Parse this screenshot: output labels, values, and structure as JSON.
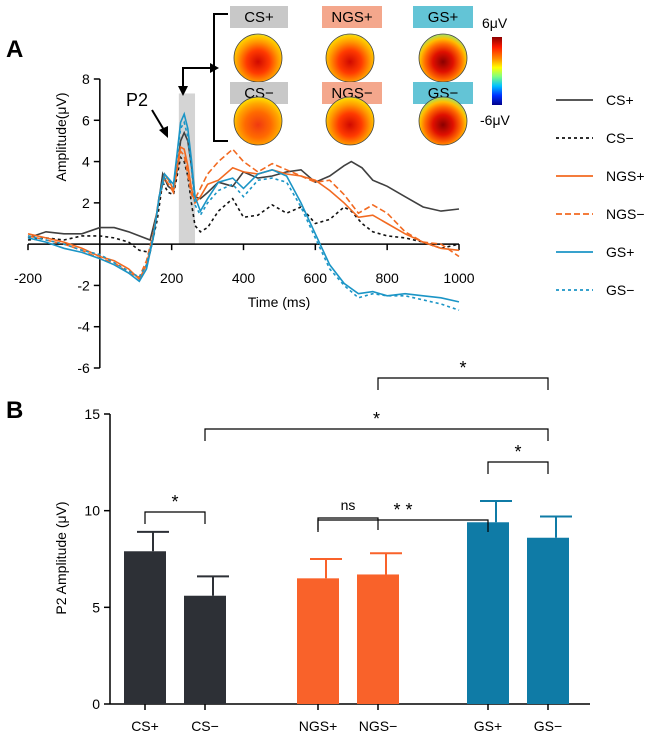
{
  "panels": {
    "a_label": "A",
    "b_label": "B"
  },
  "chart_data": [
    {
      "type": "line",
      "panel": "A",
      "xlabel": "Time (ms)",
      "ylabel": "Amplitude(μV)",
      "xlim": [
        -200,
        1000
      ],
      "ylim": [
        -6,
        8
      ],
      "xticks": [
        -200,
        200,
        400,
        600,
        800,
        1000
      ],
      "yticks": [
        -6,
        -4,
        -2,
        2,
        4,
        6,
        8
      ],
      "grid": false,
      "legend_position": "right",
      "annotation": "P2",
      "p2_window": [
        220,
        265
      ],
      "series": [
        {
          "name": "CS+",
          "color": "#404040",
          "dash": "solid",
          "x": [
            -200,
            -150,
            -100,
            -50,
            0,
            40,
            80,
            110,
            140,
            160,
            175,
            190,
            205,
            215,
            225,
            235,
            245,
            255,
            265,
            280,
            300,
            330,
            370,
            400,
            440,
            480,
            520,
            560,
            600,
            640,
            680,
            700,
            730,
            760,
            800,
            850,
            900,
            950,
            1000
          ],
          "y": [
            0.3,
            0.6,
            0.5,
            0.5,
            0.8,
            0.8,
            0.6,
            0.4,
            0.2,
            1.6,
            3.4,
            2.8,
            2.6,
            3.6,
            5.0,
            5.4,
            5.0,
            3.8,
            2.3,
            2.2,
            2.5,
            3.0,
            2.8,
            3.5,
            3.2,
            3.3,
            3.5,
            3.6,
            3.0,
            3.3,
            3.8,
            4.0,
            3.7,
            3.1,
            2.8,
            2.3,
            1.8,
            1.6,
            1.7
          ]
        },
        {
          "name": "CS−",
          "color": "#111111",
          "dash": "dotted",
          "x": [
            -200,
            -150,
            -100,
            -50,
            0,
            40,
            80,
            110,
            140,
            160,
            175,
            190,
            205,
            215,
            225,
            235,
            245,
            255,
            265,
            280,
            300,
            330,
            370,
            400,
            440,
            480,
            520,
            560,
            600,
            640,
            680,
            700,
            730,
            760,
            800,
            850,
            900,
            950,
            1000
          ],
          "y": [
            0.2,
            0.3,
            0.2,
            0.4,
            0.4,
            0.3,
            0.1,
            -0.3,
            -0.4,
            1.2,
            3.0,
            2.5,
            2.4,
            3.3,
            4.2,
            4.0,
            3.3,
            2.0,
            0.9,
            0.6,
            0.8,
            1.6,
            2.2,
            1.3,
            1.4,
            1.9,
            1.5,
            1.8,
            1.0,
            1.2,
            1.8,
            1.6,
            1.0,
            0.6,
            0.4,
            0.3,
            0.1,
            -0.2,
            0.0
          ]
        },
        {
          "name": "NGS+",
          "color": "#F26A21",
          "dash": "solid",
          "x": [
            -200,
            -150,
            -100,
            -50,
            0,
            40,
            80,
            110,
            130,
            150,
            165,
            180,
            195,
            205,
            215,
            225,
            235,
            245,
            255,
            265,
            280,
            300,
            330,
            370,
            400,
            440,
            480,
            520,
            560,
            600,
            640,
            680,
            720,
            760,
            800,
            850,
            900,
            950,
            1000
          ],
          "y": [
            0.5,
            0.3,
            0.1,
            -0.2,
            -0.6,
            -0.8,
            -1.2,
            -1.7,
            -1.0,
            0.5,
            2.2,
            3.4,
            3.0,
            2.6,
            3.8,
            4.7,
            4.6,
            3.8,
            2.7,
            2.0,
            2.3,
            2.9,
            3.1,
            3.7,
            3.5,
            3.4,
            3.6,
            3.4,
            3.3,
            3.1,
            2.6,
            2.0,
            1.3,
            1.4,
            1.0,
            0.5,
            0.1,
            -0.2,
            -0.3
          ]
        },
        {
          "name": "NGS−",
          "color": "#F26A21",
          "dash": "dashed",
          "x": [
            -200,
            -150,
            -100,
            -50,
            0,
            40,
            80,
            110,
            130,
            150,
            165,
            180,
            195,
            205,
            215,
            225,
            235,
            245,
            255,
            265,
            280,
            300,
            330,
            370,
            400,
            440,
            480,
            520,
            560,
            600,
            640,
            680,
            720,
            760,
            800,
            850,
            900,
            950,
            1000
          ],
          "y": [
            0.4,
            0.2,
            0.0,
            -0.3,
            -0.7,
            -0.9,
            -1.4,
            -1.6,
            -0.8,
            0.6,
            2.3,
            3.2,
            2.8,
            2.5,
            3.6,
            4.5,
            4.3,
            3.4,
            2.4,
            2.2,
            2.7,
            3.4,
            4.0,
            4.6,
            4.0,
            3.5,
            3.9,
            3.6,
            3.3,
            3.0,
            3.1,
            2.4,
            1.5,
            1.9,
            1.5,
            0.6,
            0.1,
            0.0,
            -0.6
          ]
        },
        {
          "name": "GS+",
          "color": "#1B95C6",
          "dash": "solid",
          "x": [
            -200,
            -150,
            -100,
            -50,
            0,
            40,
            80,
            110,
            130,
            150,
            165,
            180,
            195,
            205,
            215,
            225,
            235,
            245,
            255,
            265,
            280,
            300,
            330,
            370,
            400,
            440,
            480,
            520,
            560,
            600,
            640,
            680,
            720,
            760,
            800,
            850,
            900,
            950,
            1000
          ],
          "y": [
            0.3,
            0.1,
            -0.2,
            -0.4,
            -0.7,
            -1.0,
            -1.4,
            -1.8,
            -1.2,
            0.4,
            2.3,
            3.4,
            3.1,
            2.9,
            4.4,
            5.9,
            6.3,
            5.6,
            4.1,
            2.3,
            1.6,
            2.2,
            3.0,
            3.2,
            2.7,
            3.4,
            3.6,
            3.3,
            2.0,
            0.5,
            -1.0,
            -1.9,
            -2.4,
            -2.3,
            -2.5,
            -2.4,
            -2.5,
            -2.6,
            -2.8
          ]
        },
        {
          "name": "GS−",
          "color": "#1B95C6",
          "dash": "dotted",
          "x": [
            -200,
            -150,
            -100,
            -50,
            0,
            40,
            80,
            110,
            130,
            150,
            165,
            180,
            195,
            205,
            215,
            225,
            235,
            245,
            255,
            265,
            280,
            300,
            330,
            370,
            400,
            440,
            480,
            520,
            560,
            600,
            640,
            680,
            720,
            760,
            800,
            850,
            900,
            950,
            1000
          ],
          "y": [
            0.4,
            0.2,
            0.0,
            -0.3,
            -0.5,
            -0.9,
            -1.3,
            -1.6,
            -1.0,
            0.5,
            2.2,
            3.2,
            3.0,
            2.8,
            4.2,
            5.6,
            5.9,
            5.2,
            3.7,
            1.9,
            1.4,
            2.0,
            2.6,
            2.9,
            2.3,
            3.1,
            3.2,
            3.0,
            1.8,
            0.3,
            -1.2,
            -2.0,
            -2.6,
            -2.4,
            -2.5,
            -2.5,
            -2.7,
            -2.9,
            -3.2
          ]
        }
      ]
    },
    {
      "type": "bar",
      "panel": "B",
      "ylabel": "P2 Amplitude (μV)",
      "ylim": [
        0,
        15
      ],
      "yticks": [
        0,
        5,
        10,
        15
      ],
      "grid": false,
      "categories": [
        "CS+",
        "CS−",
        "NGS+",
        "NGS−",
        "GS+",
        "GS−"
      ],
      "values": [
        7.9,
        5.6,
        6.5,
        6.7,
        9.4,
        8.6
      ],
      "errors": [
        1.0,
        1.0,
        1.0,
        1.1,
        1.1,
        1.1
      ],
      "colors": [
        "#2d3036",
        "#2d3036",
        "#f9622a",
        "#f9622a",
        "#0f7ba6",
        "#0f7ba6"
      ],
      "comparisons": [
        {
          "from": "CS+",
          "to": "CS−",
          "label": "*"
        },
        {
          "from": "NGS+",
          "to": "NGS−",
          "label": "ns"
        },
        {
          "from": "GS+",
          "to": "GS−",
          "label": "*"
        },
        {
          "from": "NGS+",
          "to": "GS+",
          "label": "* *"
        },
        {
          "from": "CS−",
          "to": "GS−",
          "label": "*"
        },
        {
          "from": "NGS−",
          "to": "GS−",
          "label": "*"
        }
      ]
    }
  ],
  "topomaps": {
    "scale_max": "6μV",
    "scale_min": "-6μV",
    "maps": [
      {
        "label": "CS+",
        "label_color": "#c8c8c8",
        "intensity": 0.62
      },
      {
        "label": "NGS+",
        "label_color": "#f4a78c",
        "intensity": 0.66
      },
      {
        "label": "GS+",
        "label_color": "#63c4d6",
        "intensity": 0.95
      },
      {
        "label": "CS−",
        "label_color": "#c8c8c8",
        "intensity": 0.45
      },
      {
        "label": "NGS−",
        "label_color": "#f4a78c",
        "intensity": 0.66
      },
      {
        "label": "GS−",
        "label_color": "#63c4d6",
        "intensity": 0.92
      }
    ]
  }
}
